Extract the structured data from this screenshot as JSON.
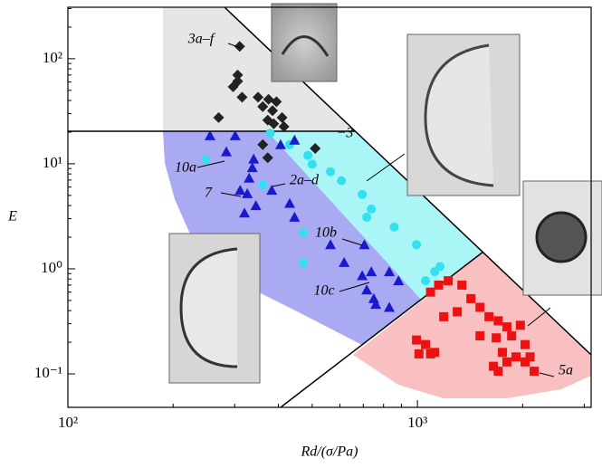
{
  "chart_data": {
    "type": "scatter",
    "xlabel": "Rd/(σ/Pa)",
    "ylabel": "E",
    "xlim": [
      100,
      3140
    ],
    "ylim": [
      0.048,
      309
    ],
    "log_x": true,
    "log_y": true,
    "xticks": [
      {
        "value": 100,
        "label": "10²"
      },
      {
        "value": 1000,
        "label": "10³"
      }
    ],
    "yticks": [
      {
        "value": 0.1,
        "label": "10⁻¹"
      },
      {
        "value": 1,
        "label": "10⁰"
      },
      {
        "value": 10,
        "label": "10¹"
      },
      {
        "value": 100,
        "label": "10²"
      }
    ],
    "annotations": [
      "3a–f",
      "10a",
      "2a–d",
      "7",
      "10b",
      "10c",
      "5a",
      "−3"
    ],
    "series": [
      {
        "marker": "diamond",
        "color": "#222222",
        "x": [
          310,
          306,
          306,
          297,
          315,
          350,
          361,
          375,
          395,
          385,
          410,
          373,
          415,
          388,
          270,
          510,
          361,
          373
        ],
        "y": [
          131,
          70,
          61,
          54,
          43,
          43,
          35,
          41,
          39,
          32,
          27.5,
          26,
          22.6,
          24,
          27.5,
          14,
          15.2,
          11.4
        ]
      },
      {
        "marker": "circle",
        "color": "#33e0f0",
        "x": [
          379,
          431,
          486,
          500,
          564,
          606,
          695,
          738,
          716,
          858,
          994,
          1120,
          1160,
          1055,
          472,
          472,
          248,
          361
        ],
        "y": [
          19.5,
          15.2,
          12,
          9.9,
          8.4,
          6.9,
          5.1,
          3.7,
          3.1,
          2.5,
          1.7,
          0.94,
          1.05,
          0.77,
          2.2,
          1.14,
          11,
          6.3
        ]
      },
      {
        "marker": "triangle",
        "color": "#1a1acc",
        "x": [
          255,
          301,
          284,
          340,
          337,
          330,
          326,
          383,
          311,
          345,
          320,
          431,
          445,
          705,
          695,
          738,
          831,
          883,
          716,
          760,
          831,
          750,
          617,
          564,
          445,
          406
        ],
        "y": [
          18.5,
          18.5,
          13,
          11.1,
          9.2,
          7.3,
          5.2,
          5.6,
          5.6,
          4,
          3.4,
          4.2,
          3.1,
          1.7,
          0.86,
          0.94,
          0.94,
          0.77,
          0.63,
          0.46,
          0.43,
          0.52,
          1.15,
          1.7,
          16.8,
          15.2
        ]
      },
      {
        "marker": "square",
        "color": "#ee1111",
        "x": [
          1090,
          1150,
          1225,
          1340,
          1422,
          1189,
          1300,
          1055,
          1120,
          994,
          1010,
          1090,
          1510,
          1602,
          1702,
          1803,
          1860,
          1970,
          2032,
          1914,
          1803,
          1702,
          1650,
          2158,
          2032,
          2100,
          1750,
          1510,
          1680
        ],
        "y": [
          0.6,
          0.7,
          0.77,
          0.7,
          0.52,
          0.35,
          0.39,
          0.19,
          0.16,
          0.21,
          0.155,
          0.155,
          0.43,
          0.35,
          0.32,
          0.28,
          0.23,
          0.29,
          0.19,
          0.145,
          0.13,
          0.106,
          0.118,
          0.106,
          0.13,
          0.145,
          0.16,
          0.23,
          0.22
        ]
      }
    ]
  }
}
